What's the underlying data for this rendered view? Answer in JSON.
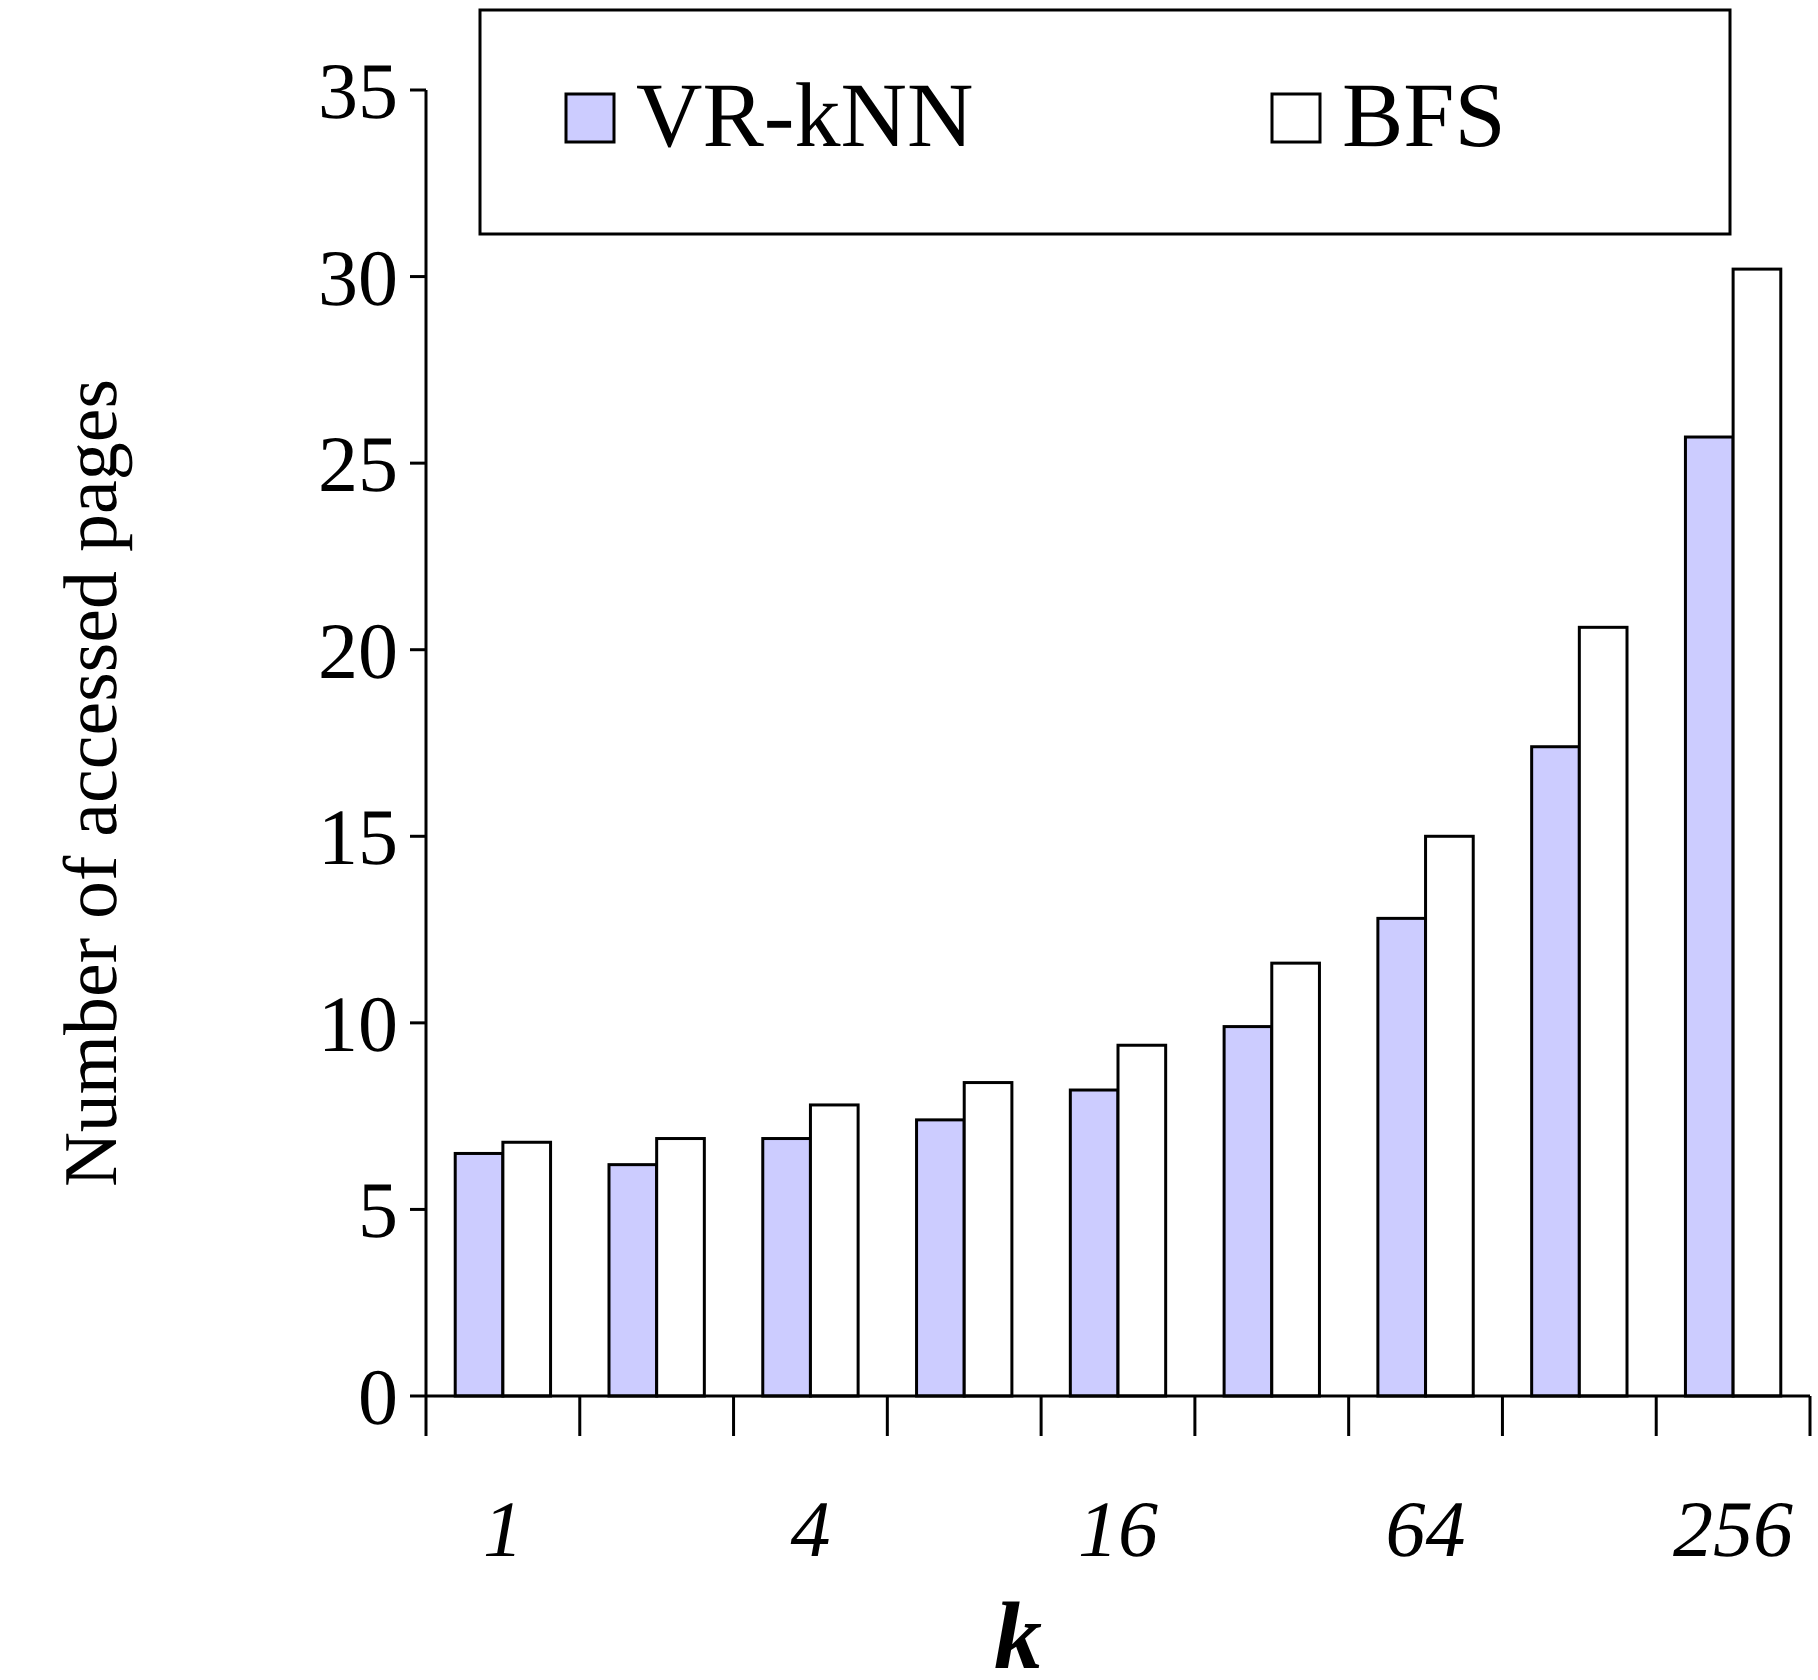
{
  "chart_data": {
    "type": "bar",
    "xlabel": "k",
    "ylabel": "Number of accessed pages",
    "categories": [
      "1",
      null,
      "4",
      null,
      "16",
      null,
      "64",
      null,
      "256"
    ],
    "series": [
      {
        "name": "VR-kNN",
        "color": "#ccccff",
        "values": [
          6.5,
          6.2,
          6.9,
          7.4,
          8.2,
          9.9,
          12.8,
          17.4,
          25.7
        ]
      },
      {
        "name": "BFS",
        "color": "#ffffff",
        "values": [
          6.8,
          6.9,
          7.8,
          8.4,
          9.4,
          11.6,
          15.0,
          20.6,
          30.2
        ]
      }
    ],
    "ylim": [
      0,
      35
    ],
    "yticks": [
      0,
      5,
      10,
      15,
      20,
      25,
      30,
      35
    ],
    "grid": false,
    "legend": "top"
  }
}
